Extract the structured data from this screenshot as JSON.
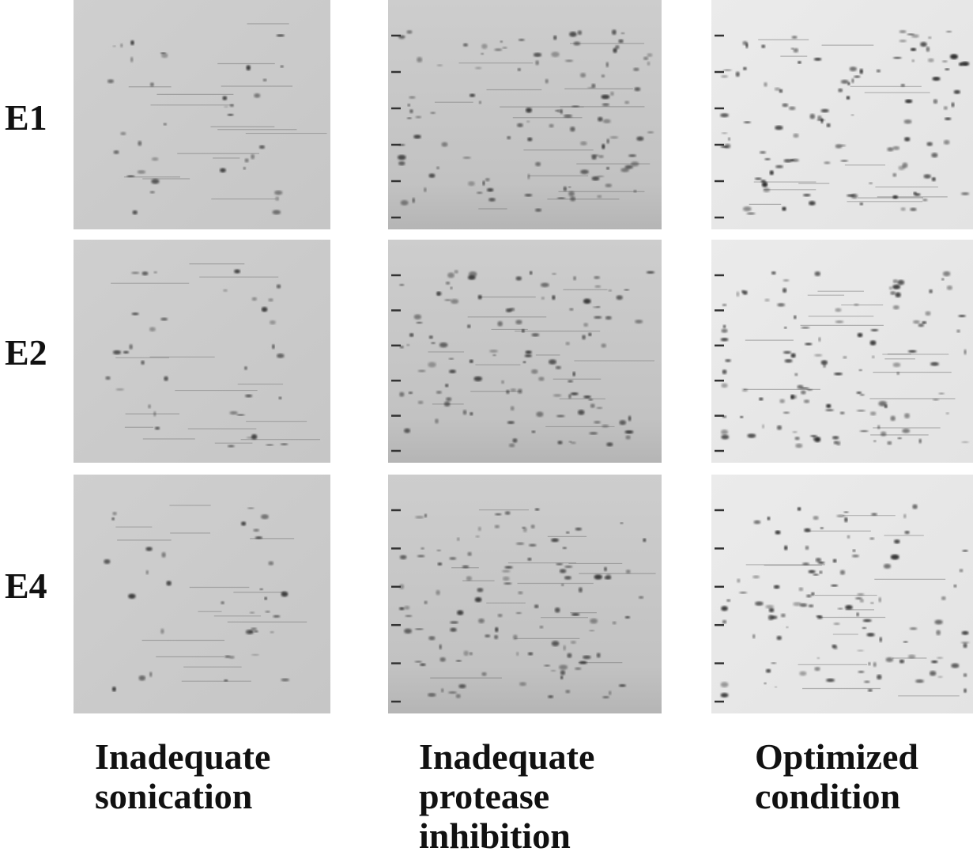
{
  "figure": {
    "row_labels": [
      "E1",
      "E2",
      "E4"
    ],
    "column_labels": [
      [
        "Inadequate",
        "sonication"
      ],
      [
        "Inadequate",
        "protease",
        "inhibition"
      ],
      [
        "Optimized",
        "condition"
      ]
    ]
  }
}
